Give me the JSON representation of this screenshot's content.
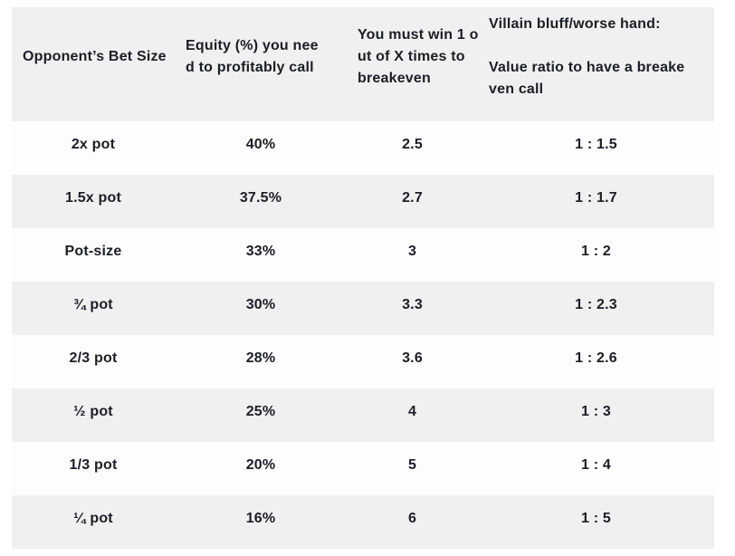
{
  "theme": {
    "page_bg": "#ffffff",
    "header_bg": "#f0f0f0",
    "row_bg": "#fdfdfd",
    "row_alt_bg": "#f0f0f0",
    "text_color": "#1d1d26"
  },
  "table": {
    "columns": [
      {
        "key": "bet_size",
        "label": "Opponent’s Bet Size"
      },
      {
        "key": "equity",
        "label": "Equity (%) you nee\nd to profitably call"
      },
      {
        "key": "win_1_of_x",
        "label": "You must win 1 o\nut of X times to\nbreakeven"
      },
      {
        "key": "bluff_value_ratio",
        "label": "Villain bluff/worse hand:\n\nValue ratio to have a breake\nven call"
      }
    ],
    "rows": [
      {
        "bet_size": "2x pot",
        "equity": "40%",
        "win_1_of_x": "2.5",
        "bluff_value_ratio": "1 : 1.5"
      },
      {
        "bet_size": "1.5x pot",
        "equity": "37.5%",
        "win_1_of_x": "2.7",
        "bluff_value_ratio": "1 : 1.7"
      },
      {
        "bet_size": "Pot-size",
        "equity": "33%",
        "win_1_of_x": "3",
        "bluff_value_ratio": "1 : 2"
      },
      {
        "bet_size": "¾ pot",
        "equity": "30%",
        "win_1_of_x": "3.3",
        "bluff_value_ratio": "1 : 2.3"
      },
      {
        "bet_size": "2/3 pot",
        "equity": "28%",
        "win_1_of_x": "3.6",
        "bluff_value_ratio": "1 : 2.6"
      },
      {
        "bet_size": "½ pot",
        "equity": "25%",
        "win_1_of_x": "4",
        "bluff_value_ratio": "1 : 3"
      },
      {
        "bet_size": "1/3 pot",
        "equity": "20%",
        "win_1_of_x": "5",
        "bluff_value_ratio": "1 : 4"
      },
      {
        "bet_size": "¼ pot",
        "equity": "16%",
        "win_1_of_x": "6",
        "bluff_value_ratio": "1 : 5"
      }
    ]
  }
}
